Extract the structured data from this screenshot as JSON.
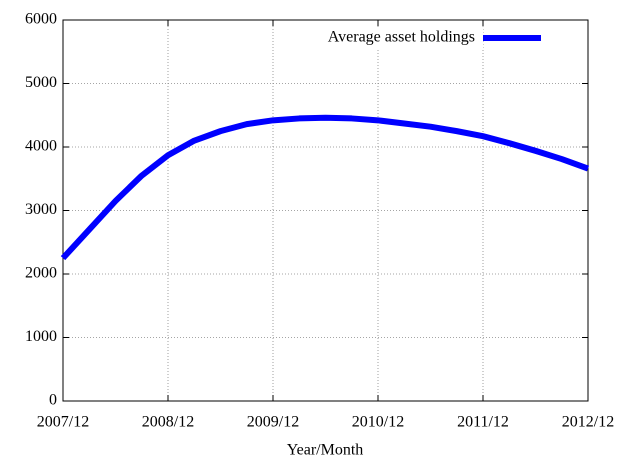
{
  "chart_data": {
    "type": "line",
    "x_label": "Year/Month",
    "x": [
      "2007/12",
      "2008/03",
      "2008/06",
      "2008/09",
      "2008/12",
      "2009/03",
      "2009/06",
      "2009/09",
      "2009/12",
      "2010/03",
      "2010/06",
      "2010/09",
      "2010/12",
      "2011/03",
      "2011/06",
      "2011/09",
      "2011/12",
      "2012/03",
      "2012/06",
      "2012/09",
      "2012/12"
    ],
    "series": [
      {
        "name": "Average asset holdings",
        "color": "#0000ff",
        "values": [
          2250,
          2700,
          3150,
          3550,
          3870,
          4100,
          4250,
          4360,
          4420,
          4450,
          4460,
          4450,
          4420,
          4370,
          4320,
          4250,
          4170,
          4060,
          3940,
          3810,
          3660
        ]
      }
    ],
    "xlim": [
      "2007/12",
      "2012/12"
    ],
    "xticks": [
      "2007/12",
      "2008/12",
      "2009/12",
      "2010/12",
      "2011/12",
      "2012/12"
    ],
    "ylim": [
      0,
      6000
    ],
    "yticks": [
      0,
      1000,
      2000,
      3000,
      4000,
      5000,
      6000
    ],
    "grid": true,
    "legend_position": "top-right"
  }
}
